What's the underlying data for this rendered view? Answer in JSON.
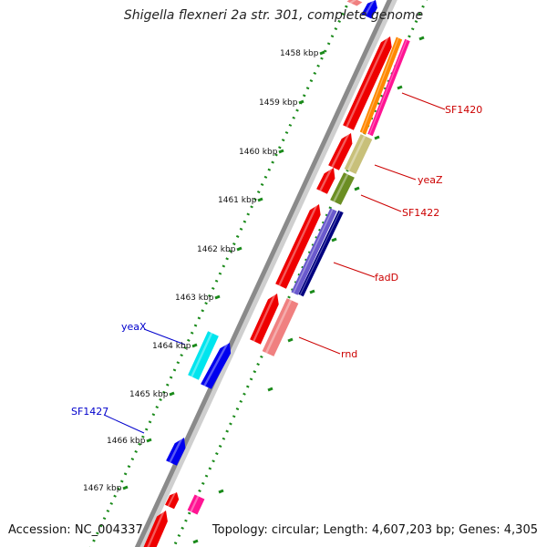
{
  "map": {
    "title": "Shigella flexneri 2a str. 301, complete genome",
    "accession": "Accession: NC_004337",
    "summary": "Topology: circular; Length: 4,607,203 bp; Genes: 4,305"
  },
  "ticks": [
    "1458 kbp",
    "1459 kbp",
    "1460 kbp",
    "1461 kbp",
    "1462 kbp",
    "1463 kbp",
    "1464 kbp",
    "1465 kbp",
    "1466 kbp",
    "1467 kbp"
  ],
  "genes": [
    {
      "name": "SF1420",
      "color": "#cc0000"
    },
    {
      "name": "yeaZ",
      "color": "#cc0000"
    },
    {
      "name": "SF1422",
      "color": "#cc0000"
    },
    {
      "name": "fadD",
      "color": "#cc0000"
    },
    {
      "name": "rnd",
      "color": "#cc0000"
    },
    {
      "name": "yeaX",
      "color": "#0000cc"
    },
    {
      "name": "SF1427",
      "color": "#0000cc"
    }
  ],
  "colors": {
    "backbone": "#8a8a8a",
    "tick_dots": "#1a8a1a",
    "cds_forward": "#ee0000",
    "cds_reverse": "#0000ee",
    "orange": "#ff8800",
    "magenta": "#ff1493",
    "khaki": "#c8c07a",
    "olive": "#6b8e23",
    "purple": "#6a5acd",
    "navy": "#000080",
    "salmon": "#f08080",
    "cyan": "#00e5ee"
  }
}
